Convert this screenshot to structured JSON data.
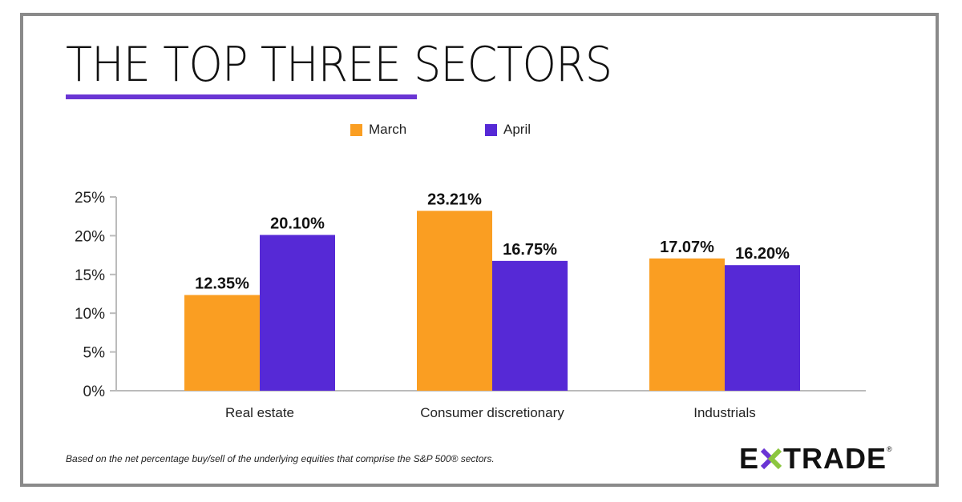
{
  "title": "THE TOP THREE SECTORS",
  "footnote": "Based on the net percentage buy/sell of the underlying equities that comprise the S&P 500® sectors.",
  "logo": {
    "text": "E*TRADE",
    "left": "E",
    "right": "TRADE",
    "reg": "®",
    "colors": {
      "star_purple": "#6a35d4",
      "star_green": "#8cc63f"
    }
  },
  "chart_data": {
    "type": "bar",
    "title": "THE TOP THREE SECTORS",
    "categories": [
      "Real estate",
      "Consumer discretionary",
      "Industrials"
    ],
    "series": [
      {
        "name": "March",
        "color": "#fa9e22",
        "values": [
          12.35,
          23.21,
          17.07
        ],
        "labels": [
          "12.35%",
          "23.21%",
          "17.07%"
        ]
      },
      {
        "name": "April",
        "color": "#5629d6",
        "values": [
          20.1,
          16.75,
          16.2
        ],
        "labels": [
          "20.10%",
          "16.75%",
          "16.20%"
        ]
      }
    ],
    "yticks": [
      "0%",
      "5%",
      "10%",
      "15%",
      "20%",
      "25%"
    ],
    "ylim": [
      0,
      25
    ],
    "xlabel": "",
    "ylabel": "",
    "grid": false,
    "legend": "top-center"
  }
}
